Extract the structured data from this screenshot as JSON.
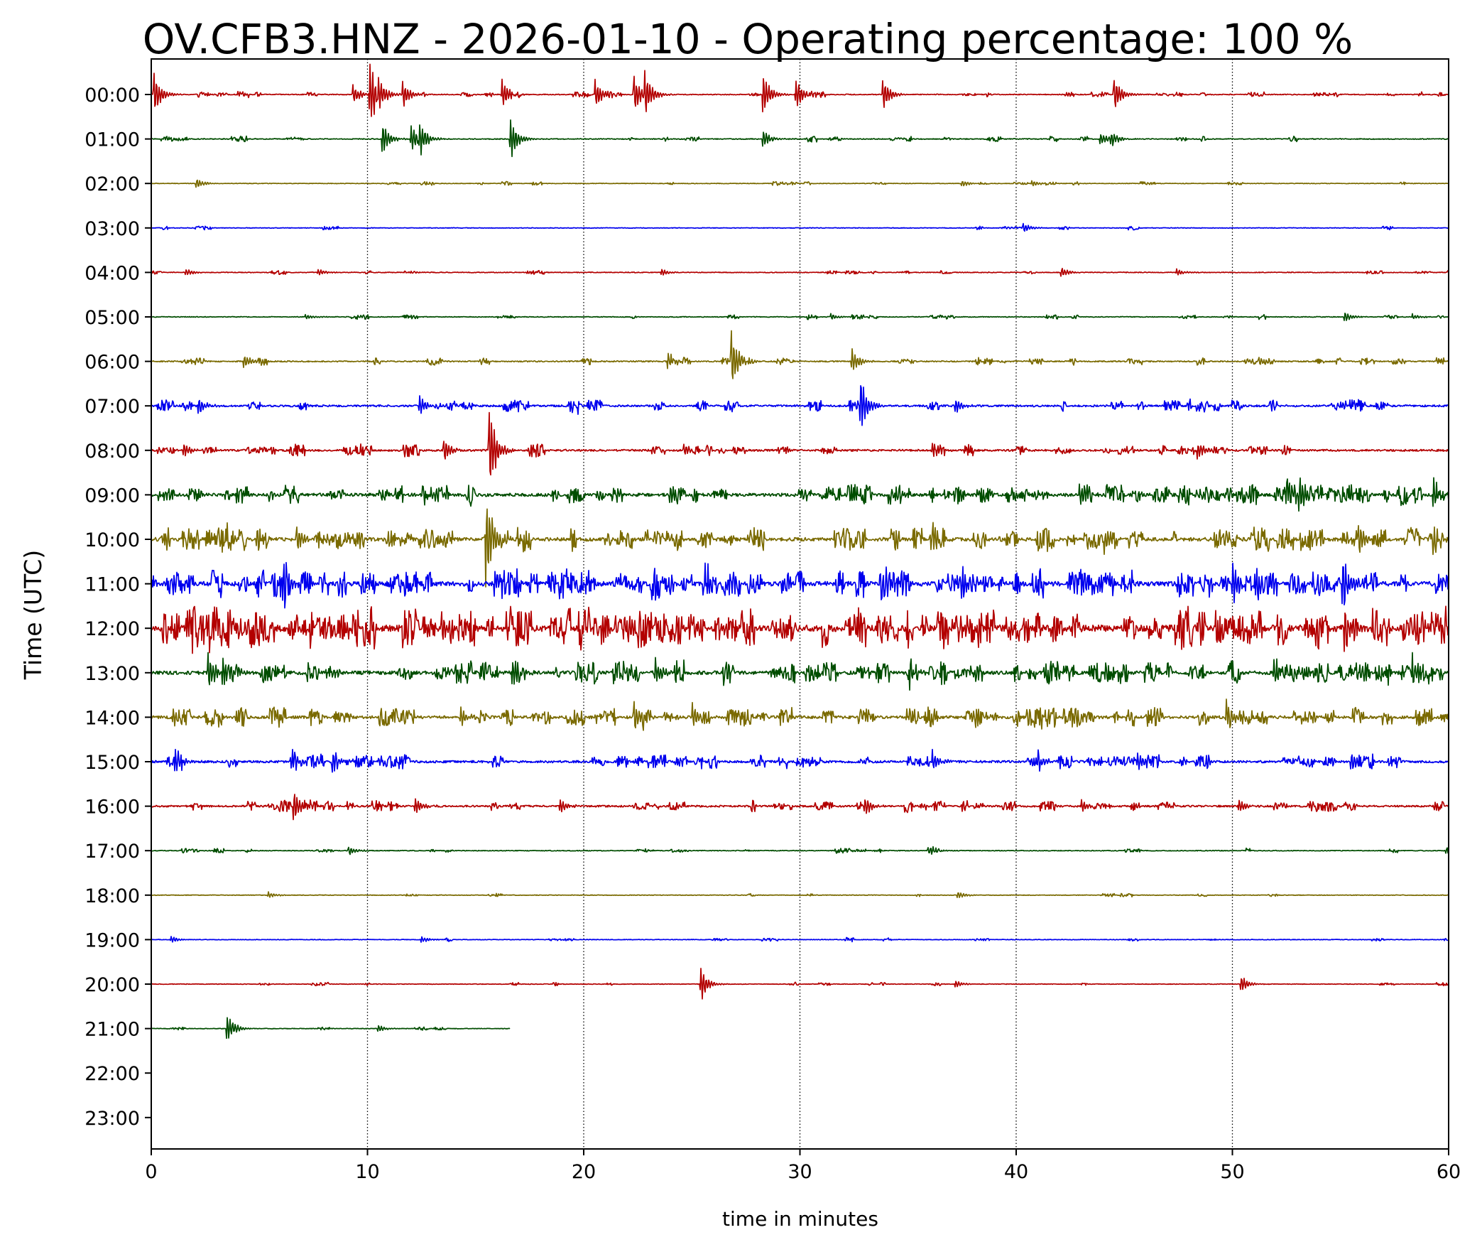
{
  "chart_data": {
    "type": "line",
    "title": "OV.CFB3.HNZ - 2026-01-10 - Operating percentage: 100 %",
    "xlabel": "time in minutes",
    "ylabel": "Time (UTC)",
    "xlim": [
      0,
      60
    ],
    "x_ticks": [
      0,
      10,
      20,
      30,
      40,
      50,
      60
    ],
    "x_tick_labels": [
      "0",
      "10",
      "20",
      "30",
      "40",
      "50",
      "60"
    ],
    "y_tick_labels": [
      "00:00",
      "01:00",
      "02:00",
      "03:00",
      "04:00",
      "05:00",
      "06:00",
      "07:00",
      "08:00",
      "09:00",
      "10:00",
      "11:00",
      "12:00",
      "13:00",
      "14:00",
      "15:00",
      "16:00",
      "17:00",
      "18:00",
      "19:00",
      "20:00",
      "21:00",
      "22:00",
      "23:00"
    ],
    "grid": "vertical dotted lines at x ticks",
    "trace_colors": [
      "#b30000",
      "#004d00",
      "#7a6a00",
      "#0000ee"
    ],
    "series": [
      {
        "hour": "00:00",
        "end_minute": 60,
        "noise": 0.6,
        "events": [
          [
            0.1,
            14
          ],
          [
            9.3,
            6
          ],
          [
            10.1,
            20
          ],
          [
            10.5,
            12
          ],
          [
            11.6,
            9
          ],
          [
            16.2,
            9
          ],
          [
            20.5,
            9
          ],
          [
            22.3,
            12
          ],
          [
            22.8,
            14
          ],
          [
            28.3,
            12
          ],
          [
            29.8,
            10
          ],
          [
            33.8,
            11
          ],
          [
            44.5,
            12
          ]
        ]
      },
      {
        "hour": "01:00",
        "end_minute": 60,
        "noise": 0.6,
        "events": [
          [
            10.7,
            9
          ],
          [
            12.0,
            8
          ],
          [
            12.4,
            11
          ],
          [
            16.6,
            12
          ],
          [
            28.3,
            5
          ],
          [
            43.9,
            4
          ],
          [
            44.4,
            4
          ]
        ]
      },
      {
        "hour": "02:00",
        "end_minute": 60,
        "noise": 0.4,
        "events": [
          [
            2.1,
            3
          ],
          [
            37.5,
            2
          ],
          [
            40.7,
            2
          ]
        ]
      },
      {
        "hour": "03:00",
        "end_minute": 60,
        "noise": 0.4,
        "events": [
          [
            40.3,
            3
          ]
        ]
      },
      {
        "hour": "04:00",
        "end_minute": 60,
        "noise": 0.5,
        "events": [
          [
            1.6,
            2
          ],
          [
            7.7,
            2
          ],
          [
            23.6,
            2
          ],
          [
            42.1,
            3
          ],
          [
            47.4,
            2
          ]
        ]
      },
      {
        "hour": "05:00",
        "end_minute": 60,
        "noise": 0.5,
        "events": [
          [
            7.1,
            2
          ],
          [
            31.4,
            2
          ],
          [
            55.2,
            3
          ],
          [
            58.3,
            2
          ]
        ]
      },
      {
        "hour": "06:00",
        "end_minute": 60,
        "noise": 0.8,
        "events": [
          [
            4.3,
            4
          ],
          [
            23.9,
            5
          ],
          [
            26.8,
            20
          ],
          [
            32.4,
            8
          ],
          [
            51.2,
            3
          ]
        ]
      },
      {
        "hour": "07:00",
        "end_minute": 60,
        "noise": 1.3,
        "events": [
          [
            2.2,
            5
          ],
          [
            12.4,
            6
          ],
          [
            19.4,
            4
          ],
          [
            32.8,
            15
          ],
          [
            37.2,
            4
          ]
        ]
      },
      {
        "hour": "08:00",
        "end_minute": 60,
        "noise": 1.3,
        "events": [
          [
            1.5,
            4
          ],
          [
            13.5,
            7
          ],
          [
            15.6,
            28
          ],
          [
            24.6,
            4
          ],
          [
            36.1,
            5
          ],
          [
            48.4,
            5
          ]
        ]
      },
      {
        "hour": "09:00",
        "end_minute": 60,
        "noise": 2.2,
        "events": [
          [
            12.8,
            6
          ],
          [
            24.0,
            7
          ],
          [
            42.9,
            8
          ],
          [
            52.5,
            13
          ],
          [
            53.1,
            10
          ],
          [
            59.3,
            8
          ]
        ]
      },
      {
        "hour": "10:00",
        "end_minute": 60,
        "noise": 2.5,
        "events": [
          [
            3.5,
            9
          ],
          [
            6.7,
            8
          ],
          [
            15.5,
            26
          ],
          [
            36.0,
            8
          ],
          [
            44.1,
            8
          ],
          [
            55.8,
            10
          ],
          [
            59.2,
            8
          ]
        ]
      },
      {
        "hour": "11:00",
        "end_minute": 60,
        "noise": 3.2,
        "events": [
          [
            6.1,
            11
          ],
          [
            25.6,
            10
          ],
          [
            33.7,
            12
          ],
          [
            37.5,
            8
          ],
          [
            50.0,
            14
          ],
          [
            51.1,
            12
          ],
          [
            55.1,
            15
          ]
        ]
      },
      {
        "hour": "12:00",
        "end_minute": 60,
        "noise": 4.5,
        "events": [
          [
            3.0,
            6
          ],
          [
            13.4,
            10
          ],
          [
            22.1,
            9
          ],
          [
            37.7,
            7
          ],
          [
            55.2,
            14
          ],
          [
            58.4,
            12
          ]
        ]
      },
      {
        "hour": "13:00",
        "end_minute": 60,
        "noise": 2.5,
        "events": [
          [
            2.6,
            12
          ],
          [
            3.3,
            13
          ],
          [
            16.7,
            10
          ],
          [
            23.3,
            8
          ],
          [
            35.1,
            7
          ],
          [
            51.9,
            8
          ],
          [
            58.3,
            9
          ]
        ]
      },
      {
        "hour": "14:00",
        "end_minute": 60,
        "noise": 2.0,
        "events": [
          [
            1.0,
            6
          ],
          [
            14.3,
            6
          ],
          [
            22.3,
            10
          ],
          [
            25.0,
            9
          ],
          [
            41.1,
            6
          ],
          [
            49.7,
            10
          ]
        ]
      },
      {
        "hour": "15:00",
        "end_minute": 60,
        "noise": 1.6,
        "events": [
          [
            1.1,
            9
          ],
          [
            6.5,
            8
          ],
          [
            8.4,
            6
          ],
          [
            36.1,
            7
          ],
          [
            41.0,
            6
          ],
          [
            45.6,
            6
          ],
          [
            55.5,
            6
          ]
        ]
      },
      {
        "hour": "16:00",
        "end_minute": 60,
        "noise": 1.2,
        "events": [
          [
            6.6,
            8
          ],
          [
            12.2,
            6
          ],
          [
            18.9,
            5
          ],
          [
            33.0,
            6
          ],
          [
            43.0,
            4
          ],
          [
            50.3,
            4
          ]
        ]
      },
      {
        "hour": "17:00",
        "end_minute": 60,
        "noise": 0.5,
        "events": [
          [
            9.1,
            3
          ],
          [
            35.9,
            3
          ],
          [
            59.9,
            2
          ]
        ]
      },
      {
        "hour": "18:00",
        "end_minute": 60,
        "noise": 0.4,
        "events": [
          [
            5.4,
            2
          ],
          [
            37.3,
            2
          ]
        ]
      },
      {
        "hour": "19:00",
        "end_minute": 60,
        "noise": 0.4,
        "events": [
          [
            0.9,
            2
          ],
          [
            12.5,
            2
          ]
        ]
      },
      {
        "hour": "20:00",
        "end_minute": 60,
        "noise": 0.4,
        "events": [
          [
            25.4,
            10
          ],
          [
            37.2,
            2
          ],
          [
            50.4,
            5
          ]
        ]
      },
      {
        "hour": "21:00",
        "end_minute": 16.6,
        "noise": 0.4,
        "events": [
          [
            3.5,
            9
          ],
          [
            10.5,
            2
          ]
        ]
      },
      {
        "hour": "22:00",
        "end_minute": 0,
        "noise": 0,
        "events": []
      },
      {
        "hour": "23:00",
        "end_minute": 0,
        "noise": 0,
        "events": []
      }
    ]
  }
}
